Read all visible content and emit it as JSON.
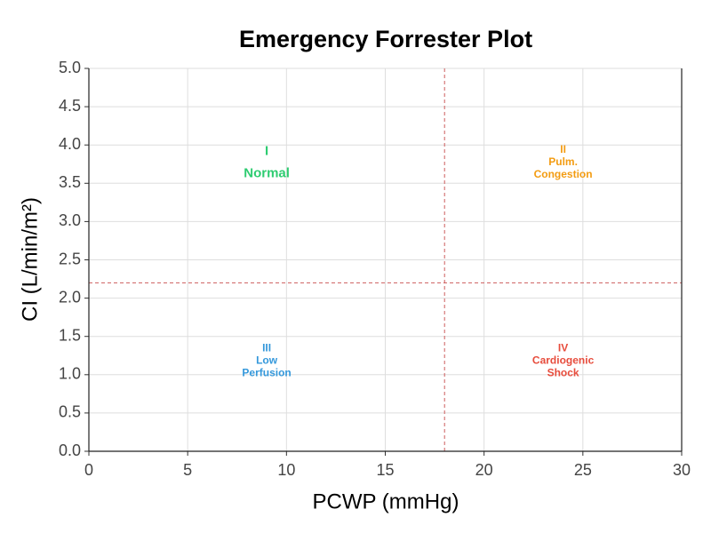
{
  "chart_data": {
    "type": "scatter",
    "title": "Emergency Forrester Plot",
    "x_label": "PCWP (mmHg)",
    "y_label": "CI (L/min/m²)",
    "xlim": [
      0,
      30
    ],
    "xticks": [
      0,
      5,
      10,
      15,
      20,
      25,
      30
    ],
    "ylim": [
      0,
      5
    ],
    "yticks": [
      {
        "value": 0,
        "label": "0.0"
      },
      0.5,
      {
        "value": 1,
        "label": "1.0"
      },
      1.5,
      {
        "value": 2,
        "label": "2.0"
      },
      2.5,
      {
        "value": 3,
        "label": "3.0"
      },
      3.5,
      {
        "value": 4,
        "label": "4.0"
      },
      4.5,
      {
        "value": 5,
        "label": "5.0"
      }
    ],
    "grid": true,
    "reference_lines": {
      "color": "#cd5c5c",
      "x": [
        18
      ],
      "y": [
        2.2
      ]
    },
    "annotations": [
      {
        "lines": [
          "I",
          "Normal"
        ],
        "x": 9,
        "y": 3.77,
        "color": "#2ecc71"
      },
      {
        "lines": [
          "II",
          "Pulm.",
          "Congestion"
        ],
        "x": 24,
        "y": 3.77,
        "color": "#f39c12"
      },
      {
        "lines": [
          "III",
          "Low",
          "Perfusion"
        ],
        "x": 9,
        "y": 1.18,
        "color": "#3498db"
      },
      {
        "lines": [
          "IV",
          "Cardiogenic",
          "Shock"
        ],
        "x": 24,
        "y": 1.18,
        "color": "#e74c3c"
      }
    ]
  }
}
